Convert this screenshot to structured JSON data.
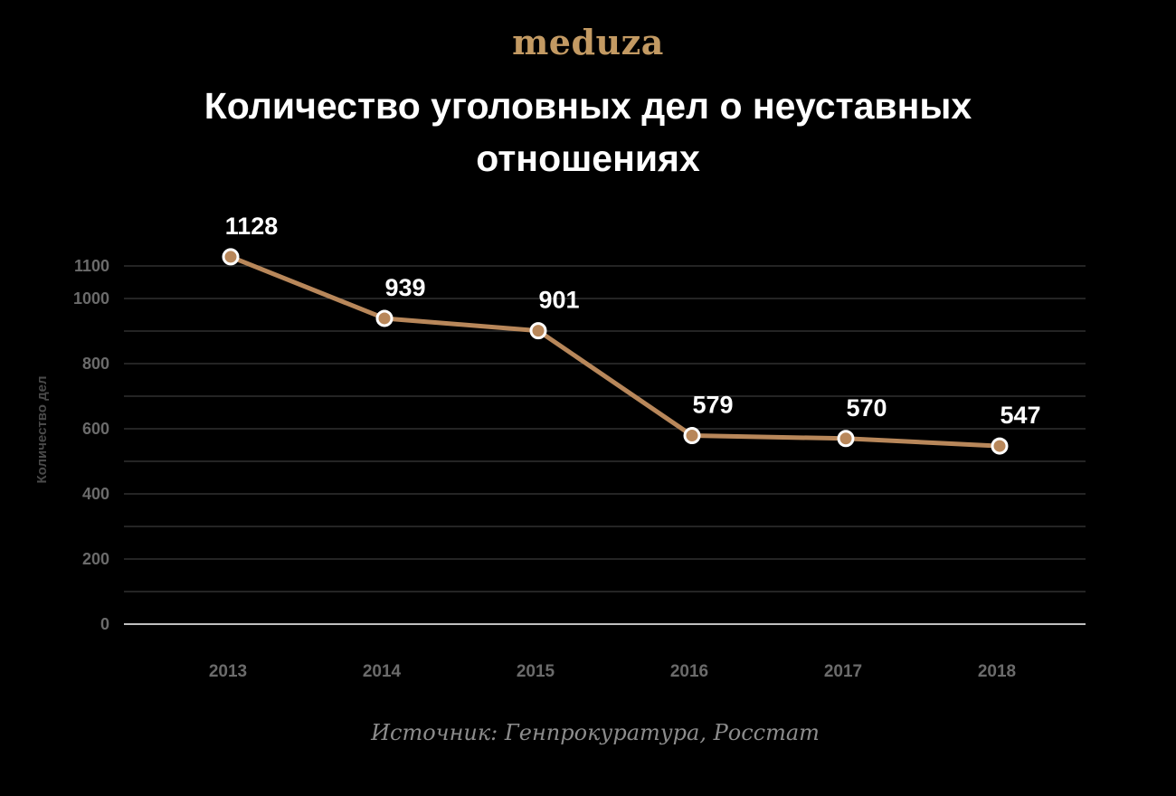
{
  "brand": {
    "logo": "meduza",
    "accent_color": "#c39a63"
  },
  "source": "Источник: Генпрокуратура, Росстат",
  "chart_data": {
    "type": "line",
    "title": "Количество уголовных дел о неуставных отношениях",
    "xlabel": "",
    "ylabel": "Количество дел",
    "categories": [
      "2013",
      "2014",
      "2015",
      "2016",
      "2017",
      "2018"
    ],
    "values": [
      1128,
      939,
      901,
      579,
      570,
      547
    ],
    "data_labels": [
      "1128",
      "939",
      "901",
      "579",
      "570",
      "547"
    ],
    "ylim": [
      0,
      1200
    ],
    "yticks": [
      0,
      200,
      400,
      600,
      800,
      1000,
      1100
    ],
    "ytick_labels": [
      "0",
      "200",
      "400",
      "600",
      "800",
      "1000",
      "1100"
    ],
    "minor_gridlines": [
      100,
      300,
      500,
      700,
      900
    ],
    "grid": true,
    "line_color": "#b8875a",
    "point_fill": "#b8875a",
    "point_stroke": "#ffffff"
  }
}
